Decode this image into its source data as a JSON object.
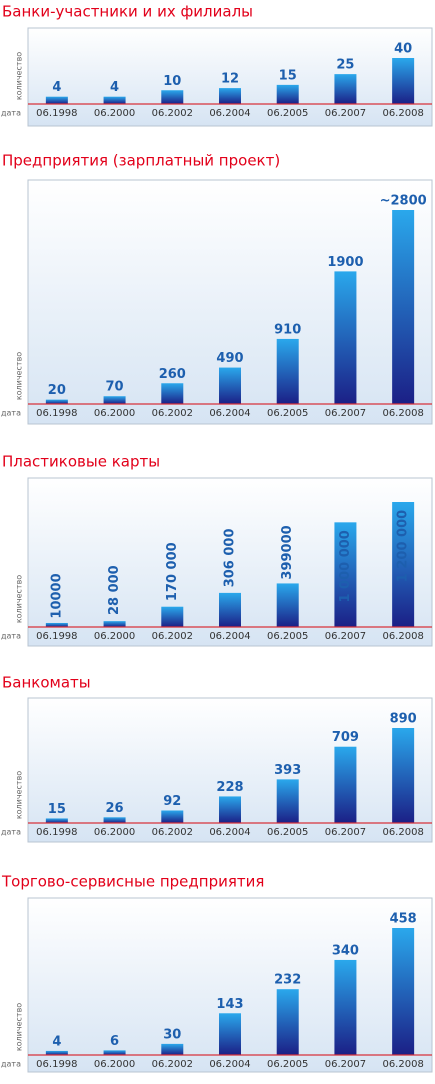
{
  "chart_data": [
    {
      "type": "bar",
      "title": "Банки-участники и их филиалы",
      "y_label": "количество",
      "x_label": "дата",
      "color": "#2aa8ec",
      "categories": [
        "06.1998",
        "06.2000",
        "06.2002",
        "06.2004",
        "06.2005",
        "06.2007",
        "06.2008"
      ],
      "values": [
        4,
        4,
        10,
        12,
        15,
        25,
        40
      ]
    },
    {
      "type": "bar",
      "title": "Предприятия (зарплатный проект)",
      "y_label": "количество",
      "x_label": "дата",
      "color": "#2aa8ec",
      "categories": [
        "06.1998",
        "06.2000",
        "06.2002",
        "06.2004",
        "06.2005",
        "06.2007",
        "06.2008"
      ],
      "values": [
        20,
        70,
        260,
        490,
        910,
        1900,
        2800
      ],
      "value_labels": [
        "20",
        "70",
        "260",
        "490",
        "910",
        "1900",
        "~2800"
      ]
    },
    {
      "type": "bar",
      "title": "Пластиковые карты",
      "y_label": "количество",
      "x_label": "дата",
      "color": "#2aa8ec",
      "rotated_labels": true,
      "categories": [
        "06.1998",
        "06.2000",
        "06.2002",
        "06.2004",
        "06.2005",
        "06.2007",
        "06.2008"
      ],
      "values": [
        10000,
        28000,
        170000,
        306000,
        399000,
        1000000,
        1200000
      ],
      "value_labels": [
        "10000",
        "28 000",
        "170 000",
        "306 000",
        "399000",
        "1 000 000",
        "1 200 000"
      ]
    },
    {
      "type": "bar",
      "title": "Банкоматы",
      "y_label": "количество",
      "x_label": "дата",
      "color": "#2aa8ec",
      "categories": [
        "06.1998",
        "06.2000",
        "06.2002",
        "06.2004",
        "06.2005",
        "06.2007",
        "06.2008"
      ],
      "values": [
        15,
        26,
        92,
        228,
        393,
        709,
        890
      ]
    },
    {
      "type": "bar",
      "title": "Торгово-сервисные предприятия",
      "y_label": "количество",
      "x_label": "дата",
      "color": "#2aa8ec",
      "categories": [
        "06.1998",
        "06.2000",
        "06.2002",
        "06.2004",
        "06.2005",
        "06.2007",
        "06.2008"
      ],
      "values": [
        4,
        6,
        30,
        143,
        232,
        340,
        458
      ]
    }
  ]
}
